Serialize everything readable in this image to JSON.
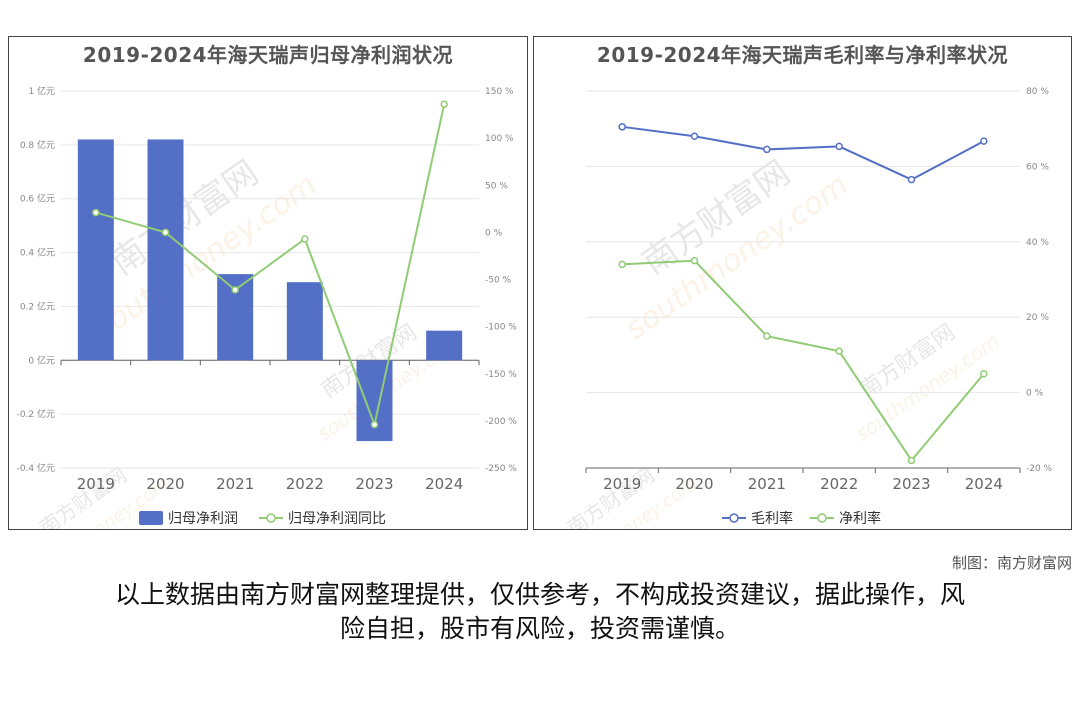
{
  "charts": [
    {
      "title": "2019-2024年海天瑞声归母净利润状况",
      "left_axis_ticks": [
        "1 亿元",
        "0.8 亿元",
        "0.6 亿元",
        "0.4 亿元",
        "0.2 亿元",
        "0 亿元",
        "-0.2 亿元",
        "-0.4 亿元"
      ],
      "right_axis_ticks": [
        "150 %",
        "100 %",
        "50 %",
        "0 %",
        "-50 %",
        "-100 %",
        "-150 %",
        "-200 %",
        "-250 %"
      ],
      "legend": [
        "归母净利润",
        "归母净利润同比"
      ]
    },
    {
      "title": "2019-2024年海天瑞声毛利率与净利率状况",
      "right_axis_ticks": [
        "80 %",
        "60 %",
        "40 %",
        "20 %",
        "0 %",
        "-20 %"
      ],
      "legend": [
        "毛利率",
        "净利率"
      ]
    }
  ],
  "chart_data": [
    {
      "type": "bar",
      "title": "2019-2024年海天瑞声归母净利润状况",
      "categories": [
        "2019",
        "2020",
        "2021",
        "2022",
        "2023",
        "2024"
      ],
      "series": [
        {
          "name": "归母净利润",
          "type": "bar",
          "axis": "left",
          "values": [
            0.82,
            0.82,
            0.32,
            0.29,
            -0.3,
            0.11
          ]
        },
        {
          "name": "归母净利润同比",
          "type": "line",
          "axis": "right",
          "values": [
            21,
            0,
            -61,
            -7,
            -204,
            136
          ]
        }
      ],
      "ylim_left": [
        -0.4,
        1.0
      ],
      "ylim_right": [
        -250,
        150
      ],
      "legend_position": "bottom",
      "colors": {
        "bar": "#5470c6",
        "line": "#91cc75"
      }
    },
    {
      "type": "line",
      "title": "2019-2024年海天瑞声毛利率与净利率状况",
      "categories": [
        "2019",
        "2020",
        "2021",
        "2022",
        "2023",
        "2024"
      ],
      "series": [
        {
          "name": "毛利率",
          "axis": "right",
          "values": [
            70.5,
            68,
            64.5,
            65.3,
            56.5,
            66.7
          ]
        },
        {
          "name": "净利率",
          "axis": "right",
          "values": [
            34,
            35,
            15,
            11,
            -18,
            5
          ]
        }
      ],
      "ylim_right": [
        -20,
        80
      ],
      "legend_position": "bottom",
      "colors": {
        "gross": "#5470c6",
        "net": "#91cc75"
      }
    }
  ],
  "credit": "制图：南方财富网",
  "disclaimer_lines": [
    "以上数据由南方财富网整理提供，仅供参考，不构成投资建议，据此操作，风",
    "险自担，股市有风险，投资需谨慎。"
  ],
  "watermark": {
    "text_cn": "南方财富网",
    "text_en": "southmoney.com"
  }
}
